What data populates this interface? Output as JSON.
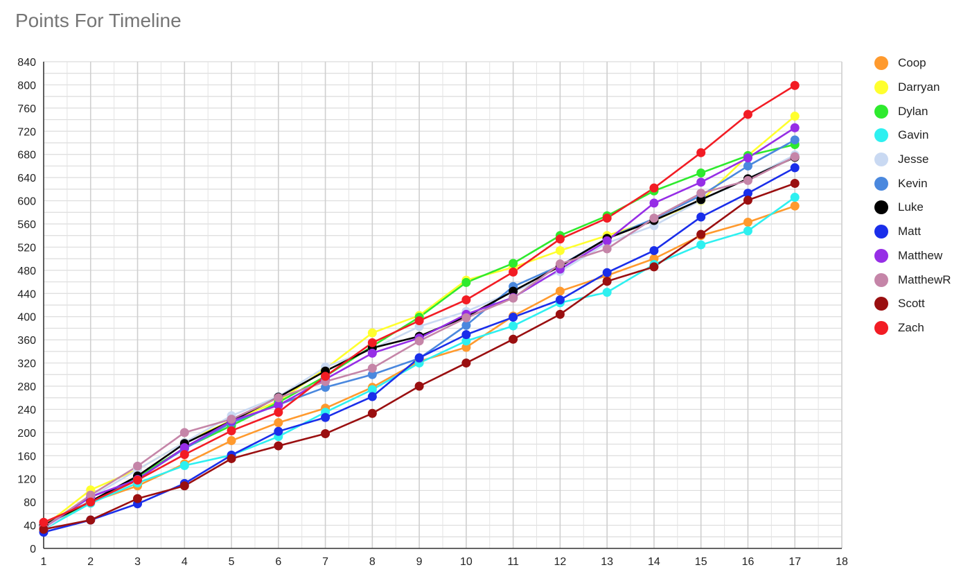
{
  "chart_data": {
    "type": "line",
    "title": "Points For Timeline",
    "xlabel": "",
    "ylabel": "",
    "xlim": [
      1,
      18
    ],
    "ylim": [
      0,
      840
    ],
    "x_ticks": [
      "1",
      "2",
      "3",
      "4",
      "5",
      "6",
      "7",
      "8",
      "9",
      "10",
      "11",
      "12",
      "13",
      "14",
      "15",
      "16",
      "17",
      "18"
    ],
    "y_ticks": [
      "0",
      "40",
      "80",
      "120",
      "160",
      "200",
      "240",
      "280",
      "320",
      "360",
      "400",
      "440",
      "480",
      "520",
      "560",
      "600",
      "640",
      "680",
      "720",
      "760",
      "800",
      "840"
    ],
    "grid": true,
    "legend": "right",
    "x": [
      1,
      2,
      3,
      4,
      5,
      6,
      7,
      8,
      9,
      10,
      11,
      12,
      13,
      14,
      15,
      16,
      17
    ],
    "series": [
      {
        "name": "Coop",
        "color": "#ff9a2e",
        "values": [
          33,
          80,
          108,
          146,
          186,
          217,
          242,
          278,
          323,
          347,
          401,
          444,
          471,
          500,
          540,
          563,
          591
        ]
      },
      {
        "name": "Darryan",
        "color": "#ffff2e",
        "values": [
          38,
          101,
          136,
          183,
          221,
          254,
          310,
          372,
          402,
          463,
          485,
          514,
          540,
          566,
          600,
          678,
          746
        ]
      },
      {
        "name": "Dylan",
        "color": "#2eea2e",
        "values": [
          38,
          81,
          124,
          173,
          212,
          252,
          297,
          349,
          399,
          459,
          492,
          540,
          574,
          617,
          648,
          678,
          697
        ]
      },
      {
        "name": "Gavin",
        "color": "#2ef0f0",
        "values": [
          33,
          78,
          113,
          143,
          161,
          193,
          235,
          274,
          320,
          358,
          384,
          424,
          442,
          490,
          524,
          548,
          606
        ]
      },
      {
        "name": "Jesse",
        "color": "#c9d9f2",
        "values": [
          33,
          88,
          136,
          183,
          229,
          262,
          313,
          344,
          383,
          409,
          443,
          478,
          527,
          557,
          601,
          638,
          679
        ]
      },
      {
        "name": "Kevin",
        "color": "#4a88de",
        "values": [
          40,
          81,
          120,
          172,
          217,
          248,
          278,
          300,
          328,
          385,
          452,
          488,
          535,
          569,
          609,
          660,
          705
        ]
      },
      {
        "name": "Luke",
        "color": "#000000",
        "values": [
          40,
          81,
          125,
          181,
          220,
          261,
          306,
          346,
          366,
          400,
          444,
          487,
          535,
          566,
          602,
          638,
          675
        ]
      },
      {
        "name": "Matt",
        "color": "#1a2eea",
        "values": [
          28,
          49,
          77,
          112,
          161,
          202,
          226,
          262,
          329,
          369,
          399,
          429,
          476,
          514,
          572,
          613,
          657
        ]
      },
      {
        "name": "Matthew",
        "color": "#962ee6",
        "values": [
          36,
          89,
          119,
          174,
          220,
          247,
          292,
          337,
          363,
          404,
          433,
          482,
          531,
          596,
          632,
          674,
          726
        ]
      },
      {
        "name": "MatthewR",
        "color": "#c585a8",
        "values": [
          36,
          92,
          142,
          200,
          223,
          260,
          288,
          311,
          358,
          398,
          432,
          491,
          517,
          570,
          613,
          635,
          676
        ]
      },
      {
        "name": "Scott",
        "color": "#9a0f10",
        "values": [
          33,
          49,
          86,
          108,
          155,
          177,
          198,
          233,
          280,
          320,
          361,
          404,
          461,
          486,
          542,
          601,
          630
        ]
      },
      {
        "name": "Zach",
        "color": "#f21c24",
        "values": [
          45,
          80,
          118,
          162,
          203,
          235,
          297,
          355,
          393,
          429,
          477,
          534,
          570,
          622,
          683,
          749,
          799
        ]
      }
    ]
  }
}
